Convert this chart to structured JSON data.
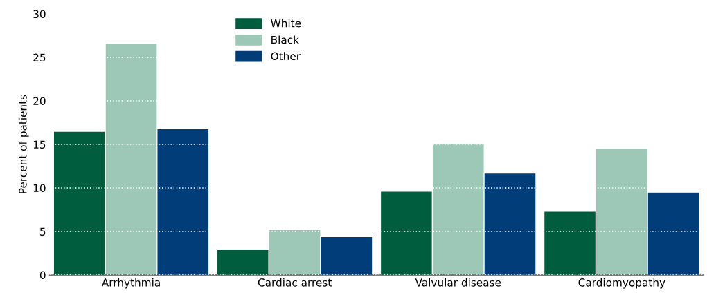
{
  "chart_data": {
    "type": "bar",
    "ylabel": "Percent of patients",
    "categories": [
      "Arrhythmia",
      "Cardiac arrest",
      "Valvular disease",
      "Cardiomyopathy"
    ],
    "series": [
      {
        "name": "White",
        "color": "#005e3f",
        "values": [
          16.5,
          2.9,
          9.6,
          7.3
        ]
      },
      {
        "name": "Black",
        "color": "#9dc8b8",
        "values": [
          26.6,
          5.2,
          15.1,
          14.5
        ]
      },
      {
        "name": "Other",
        "color": "#003d79",
        "values": [
          16.8,
          4.4,
          11.7,
          9.5
        ]
      }
    ],
    "ylim": [
      0,
      30
    ],
    "yticks": [
      0,
      5,
      10,
      15,
      20,
      25,
      30
    ],
    "grid": "y",
    "legend": "top left"
  }
}
